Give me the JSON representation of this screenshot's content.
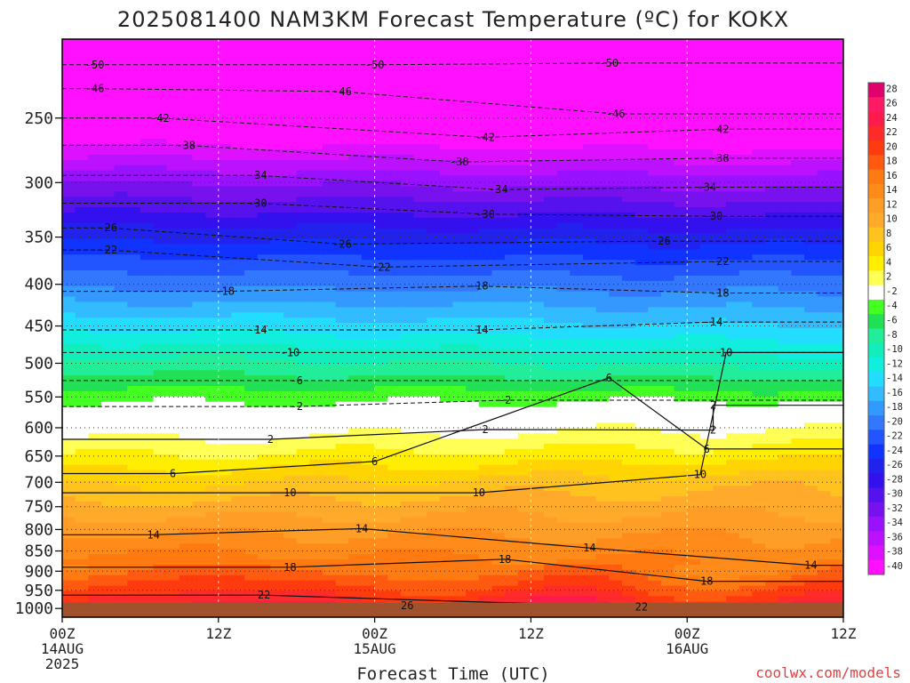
{
  "chart_data": {
    "type": "heatmap",
    "title": "2025081400 NAM3KM Forecast Temperature (ºC) for KOKX",
    "xlabel": "Forecast Time (UTC)",
    "credit": "coolwx.com/models",
    "x_ticks": [
      {
        "hour": 0,
        "lines": [
          "00Z",
          "14AUG",
          "2025"
        ]
      },
      {
        "hour": 12,
        "lines": [
          "12Z"
        ]
      },
      {
        "hour": 24,
        "lines": [
          "00Z",
          "15AUG"
        ]
      },
      {
        "hour": 36,
        "lines": [
          "12Z"
        ]
      },
      {
        "hour": 48,
        "lines": [
          "00Z",
          "16AUG"
        ]
      },
      {
        "hour": 60,
        "lines": [
          "12Z"
        ]
      }
    ],
    "x_range_hours": [
      0,
      60
    ],
    "y_axis": "pressure (hPa), log scale, inverted",
    "y_range_hpa": [
      1025,
      200
    ],
    "y_ticks": [
      250,
      300,
      350,
      400,
      450,
      500,
      550,
      600,
      650,
      700,
      750,
      800,
      850,
      900,
      950,
      1000
    ],
    "colorbar": {
      "levels": [
        "28",
        "26",
        "24",
        "22",
        "20",
        "18",
        "16",
        "14",
        "12",
        "10",
        "8",
        "6",
        "4",
        "2",
        "-2",
        "-4",
        "-6",
        "-8",
        "-10",
        "-12",
        "-14",
        "-16",
        "-18",
        "-20",
        "-22",
        "-24",
        "-26",
        "-28",
        "-30",
        "-32",
        "-34",
        "-36",
        "-38",
        "-40"
      ],
      "colors": [
        "#e0006e",
        "#ff1a66",
        "#ff1a4d",
        "#ff2a2a",
        "#ff3a0f",
        "#ff5a10",
        "#ff7a10",
        "#ff8c1a",
        "#ff9e26",
        "#ffaa2a",
        "#ffc21e",
        "#ffd400",
        "#ffee00",
        "#ffff55",
        "#ffffff",
        "#44ff22",
        "#22e055",
        "#22ee99",
        "#11eebb",
        "#11eedd",
        "#22ddff",
        "#33bbff",
        "#3399ff",
        "#3377ff",
        "#2255ff",
        "#1133ff",
        "#2222ee",
        "#3311ee",
        "#5511ee",
        "#7711ee",
        "#9911ff",
        "#bb11ff",
        "#dd11ff",
        "#ff11ff"
      ]
    },
    "temperature_by_pressure": {
      "pressure_hpa": [
        1000,
        975,
        950,
        925,
        900,
        850,
        800,
        750,
        700,
        650,
        600,
        575,
        560,
        550,
        500,
        450,
        400,
        350,
        300,
        250,
        200
      ],
      "hour0_celsius": [
        25,
        23,
        21.5,
        20,
        18.5,
        16,
        13.5,
        10.5,
        7.5,
        4,
        0.5,
        -1,
        -2,
        -3,
        -7,
        -12.5,
        -18.5,
        -24.5,
        -32,
        -42,
        -52
      ],
      "hour60_celsius": [
        24,
        22,
        20,
        18.5,
        16.5,
        15,
        13.5,
        11.5,
        9.5,
        5.5,
        2,
        0,
        -1.5,
        -3,
        -9,
        -14,
        -19,
        -25,
        -33,
        -43,
        -51
      ]
    },
    "contours_labeled": [
      {
        "value": "26",
        "hour": 26.5,
        "hpa": 992
      },
      {
        "value": "22",
        "hour": 15.5,
        "hpa": 963
      },
      {
        "value": "22",
        "hour": 44.5,
        "hpa": 996
      },
      {
        "value": "18",
        "hour": 17.5,
        "hpa": 890
      },
      {
        "value": "18",
        "hour": 34,
        "hpa": 870
      },
      {
        "value": "18",
        "hour": 49.5,
        "hpa": 926
      },
      {
        "value": "14",
        "hour": 7,
        "hpa": 812
      },
      {
        "value": "14",
        "hour": 23,
        "hpa": 798
      },
      {
        "value": "14",
        "hour": 40.5,
        "hpa": 843
      },
      {
        "value": "14",
        "hour": 57.5,
        "hpa": 885
      },
      {
        "value": "10",
        "hour": 17.5,
        "hpa": 721
      },
      {
        "value": "10",
        "hour": 32,
        "hpa": 721
      },
      {
        "value": "10",
        "hour": 49,
        "hpa": 685
      },
      {
        "value": "6",
        "hour": 8.5,
        "hpa": 683
      },
      {
        "value": "6",
        "hour": 24,
        "hpa": 660
      },
      {
        "value": "6",
        "hour": 49.5,
        "hpa": 637
      },
      {
        "value": "2",
        "hour": 16,
        "hpa": 620
      },
      {
        "value": "2",
        "hour": 32.5,
        "hpa": 603
      },
      {
        "value": "2",
        "hour": 50,
        "hpa": 604
      },
      {
        "value": "-2",
        "hour": 18,
        "hpa": 565
      },
      {
        "value": "-2",
        "hour": 34,
        "hpa": 555
      },
      {
        "value": "2",
        "hour": 50,
        "hpa": 563
      },
      {
        "value": "-6",
        "hour": 18,
        "hpa": 525
      },
      {
        "value": "6",
        "hour": 42,
        "hpa": 521
      },
      {
        "value": "-10",
        "hour": 17.5,
        "hpa": 485
      },
      {
        "value": "10",
        "hour": 51,
        "hpa": 485
      },
      {
        "value": "-14",
        "hour": 15,
        "hpa": 455
      },
      {
        "value": "-14",
        "hour": 32,
        "hpa": 455
      },
      {
        "value": "-14",
        "hour": 50,
        "hpa": 445
      },
      {
        "value": "-18",
        "hour": 12.5,
        "hpa": 408
      },
      {
        "value": "-18",
        "hour": 32,
        "hpa": 402
      },
      {
        "value": "-18",
        "hour": 50.5,
        "hpa": 410
      },
      {
        "value": "-22",
        "hour": 3.5,
        "hpa": 363
      },
      {
        "value": "-22",
        "hour": 24.5,
        "hpa": 381
      },
      {
        "value": "-22",
        "hour": 50.5,
        "hpa": 375
      },
      {
        "value": "-26",
        "hour": 3.5,
        "hpa": 341
      },
      {
        "value": "-26",
        "hour": 21.5,
        "hpa": 357
      },
      {
        "value": "-26",
        "hour": 46,
        "hpa": 354
      },
      {
        "value": "-30",
        "hour": 15,
        "hpa": 318
      },
      {
        "value": "-30",
        "hour": 32.5,
        "hpa": 328
      },
      {
        "value": "-30",
        "hour": 50,
        "hpa": 330
      },
      {
        "value": "-34",
        "hour": 15,
        "hpa": 294
      },
      {
        "value": "-34",
        "hour": 33.5,
        "hpa": 306
      },
      {
        "value": "-34",
        "hour": 49.5,
        "hpa": 304
      },
      {
        "value": "-38",
        "hour": 9.5,
        "hpa": 270
      },
      {
        "value": "-38",
        "hour": 30.5,
        "hpa": 283
      },
      {
        "value": "-38",
        "hour": 50.5,
        "hpa": 280
      },
      {
        "value": "-42",
        "hour": 7.5,
        "hpa": 250
      },
      {
        "value": "-42",
        "hour": 32.5,
        "hpa": 264
      },
      {
        "value": "-42",
        "hour": 50.5,
        "hpa": 258
      },
      {
        "value": "-46",
        "hour": 2.5,
        "hpa": 230
      },
      {
        "value": "-46",
        "hour": 21.5,
        "hpa": 232
      },
      {
        "value": "-46",
        "hour": 42.5,
        "hpa": 247
      },
      {
        "value": "-50",
        "hour": 2.5,
        "hpa": 215
      },
      {
        "value": "-50",
        "hour": 24,
        "hpa": 215
      },
      {
        "value": "-50",
        "hour": 42,
        "hpa": 214
      }
    ]
  }
}
